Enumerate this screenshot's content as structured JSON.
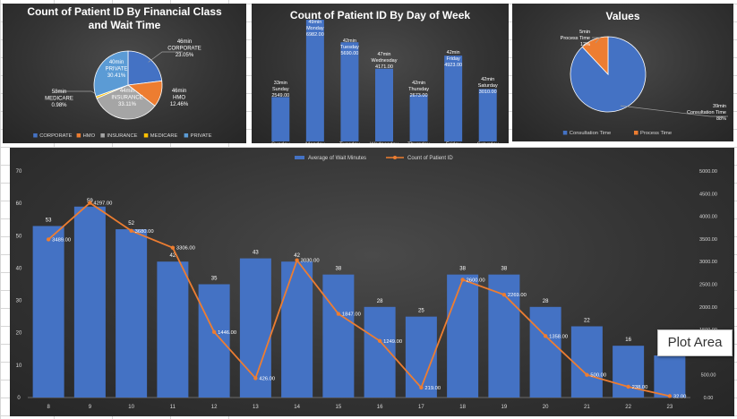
{
  "chart_data": [
    {
      "type": "pie",
      "title": "Count of Patient ID By Financial Class and Wait Time",
      "slices": [
        {
          "name": "CORPORATE",
          "value": 23.05,
          "label": "46min, CORPORATE, 23.05%",
          "color": "#4472c4"
        },
        {
          "name": "HMO",
          "value": 12.46,
          "label": "46min, HMO, 12.46%",
          "color": "#ed7d31"
        },
        {
          "name": "INSURANCE",
          "value": 33.11,
          "label": "44min, INSURANCE, 33.11%",
          "color": "#a5a5a5"
        },
        {
          "name": "MEDICARE",
          "value": 0.98,
          "label": "58min, MEDICARE, 0.98%",
          "color": "#ffc000"
        },
        {
          "name": "PRIVATE",
          "value": 30.41,
          "label": "40min, PRIVATE, 30.41%",
          "color": "#5b9bd5"
        }
      ],
      "legend": [
        "CORPORATE",
        "HMO",
        "INSURANCE",
        "MEDICARE",
        "PRIVATE"
      ],
      "legend_position": "bottom"
    },
    {
      "type": "bar",
      "title": "Count of Patient ID By Day of Week",
      "categories": [
        "Sunday",
        "Monday",
        "Tuesday",
        "Wednesday",
        "Thursday",
        "Friday",
        "Saturday"
      ],
      "values": [
        2549,
        6982,
        5690,
        4171,
        2673,
        4923,
        3010
      ],
      "data_labels": [
        "33min, Sunday, 2549.00",
        "49min, Monday, 6982.00",
        "42min, Tuesday, 5690.00",
        "47min, Wednesday, 4171.00",
        "42min, Thursday, 2673.00",
        "42min, Friday, 4923.00",
        "42min, Saturday, 3010.00"
      ],
      "color": "#4472c4"
    },
    {
      "type": "pie",
      "title": "Values",
      "slices": [
        {
          "name": "Consultation Time",
          "value": 88,
          "label": "39min, Consultation Time, 88%",
          "color": "#4472c4"
        },
        {
          "name": "Process Time",
          "value": 12,
          "label": "5min, Process Time, 12%",
          "color": "#ed7d31"
        }
      ],
      "legend": [
        "Consultation Time",
        "Process Time"
      ],
      "legend_position": "bottom"
    },
    {
      "type": "bar",
      "title": "",
      "categories": [
        "8",
        "9",
        "10",
        "11",
        "12",
        "13",
        "14",
        "15",
        "16",
        "17",
        "18",
        "19",
        "20",
        "21",
        "22",
        "23"
      ],
      "series": [
        {
          "name": "Average of Wait Minutes",
          "type": "bar",
          "axis": "left",
          "color": "#4472c4",
          "values": [
            53,
            59,
            52,
            42,
            35,
            43,
            42,
            38,
            28,
            25,
            38,
            38,
            28,
            22,
            16,
            13
          ]
        },
        {
          "name": "Count of Patient ID",
          "type": "line",
          "axis": "right",
          "color": "#ed7d31",
          "values": [
            3489,
            4297,
            3680,
            3306,
            1446,
            426,
            3030,
            1847,
            1249,
            219,
            2600,
            2269,
            1358,
            500,
            238,
            32
          ]
        }
      ],
      "y_left": {
        "min": 0,
        "max": 70,
        "ticks": [
          "0",
          "10",
          "20",
          "30",
          "40",
          "50",
          "60",
          "70"
        ]
      },
      "y_right": {
        "min": 0,
        "max": 5000,
        "ticks": [
          "0.00",
          "500.00",
          "1000.00",
          "1500.00",
          "2000.00",
          "2500.00",
          "3000.00",
          "3500.00",
          "4000.00",
          "4500.00",
          "5000.00"
        ]
      },
      "legend_position": "top",
      "grid": false
    }
  ],
  "tooltip": {
    "text": "Plot Area"
  }
}
